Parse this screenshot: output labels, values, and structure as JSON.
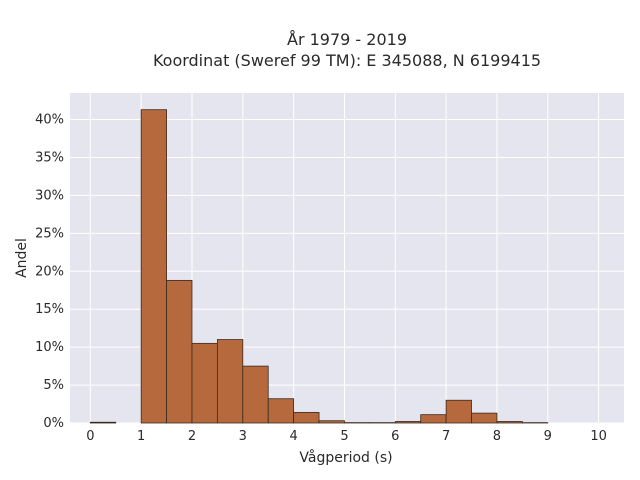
{
  "chart_data": {
    "type": "bar",
    "title_lines": [
      "År 1979 - 2019",
      "Koordinat (Sweref 99 TM): E 345088, N 6199415"
    ],
    "xlabel": "Vågperiod (s)",
    "ylabel": "Andel",
    "xlim": [
      -0.4,
      10.5
    ],
    "ylim": [
      0,
      43.5
    ],
    "x_ticks": [
      0,
      1,
      2,
      3,
      4,
      5,
      6,
      7,
      8,
      9,
      10
    ],
    "y_ticks": [
      0,
      5,
      10,
      15,
      20,
      25,
      30,
      35,
      40
    ],
    "y_tick_suffix": "%",
    "grid": true,
    "bin_width": 0.5,
    "bins": [
      0,
      0.5,
      1,
      1.5,
      2,
      2.5,
      3,
      3.5,
      4,
      4.5,
      5,
      5.5,
      6,
      6.5,
      7,
      7.5,
      8,
      8.5,
      9,
      9.5
    ],
    "values": [
      0.1,
      0,
      41.3,
      18.8,
      10.5,
      11.0,
      7.5,
      3.2,
      1.4,
      0.3,
      0.05,
      0.05,
      0.2,
      1.1,
      3.0,
      1.3,
      0.2,
      0.05,
      0,
      0
    ],
    "bar_color": "#b5693c",
    "plot_bg": "#e5e5ef"
  }
}
